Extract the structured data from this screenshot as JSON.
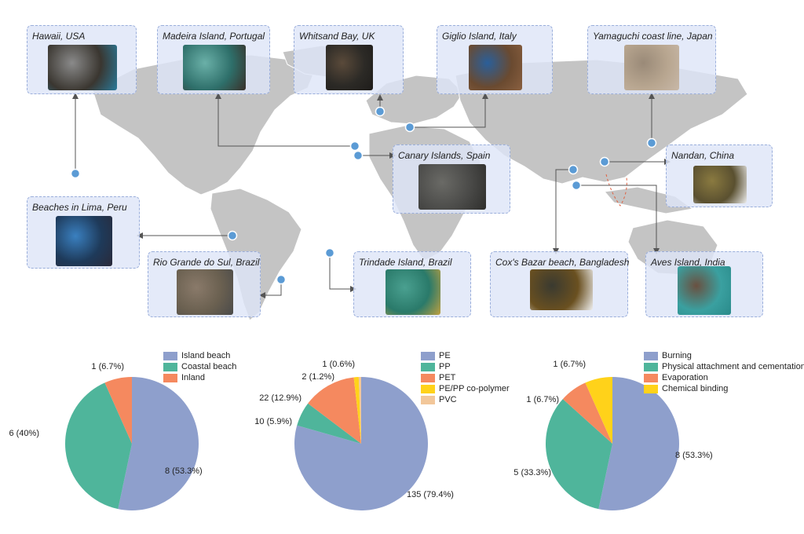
{
  "sites": [
    {
      "id": "hawaii",
      "label": "Hawaii, USA",
      "photo_colors": [
        "#3a3630",
        "#8a8a8a",
        "#2a7a9a"
      ]
    },
    {
      "id": "madeira",
      "label": "Madeira Island, Portugal",
      "photo_colors": [
        "#2e6f6a",
        "#6ab0a8",
        "#3a2f28"
      ]
    },
    {
      "id": "whitsand",
      "label": "Whitsand Bay, UK",
      "photo_colors": [
        "#2c2a26",
        "#5a4a3a",
        "#1e1c1a"
      ]
    },
    {
      "id": "giglio",
      "label": "Giglio Island, Italy",
      "photo_colors": [
        "#6a4a30",
        "#2a5f9a",
        "#8a6040"
      ]
    },
    {
      "id": "yamaguchi",
      "label": "Yamaguchi coast line, Japan",
      "photo_colors": [
        "#b8a690",
        "#9a8a78",
        "#c8b8a8"
      ]
    },
    {
      "id": "canary",
      "label": "Canary Islands, Spain",
      "photo_colors": [
        "#4a4a48",
        "#6a6a66",
        "#2e2e2c"
      ]
    },
    {
      "id": "nandan",
      "label": "Nandan, China",
      "photo_colors": [
        "#5a5030",
        "#8a7a40",
        "#eeeeee"
      ]
    },
    {
      "id": "lima",
      "label": "Beaches in Lima, Peru",
      "photo_colors": [
        "#1e3a5a",
        "#3a80c0",
        "#2a2a3a"
      ]
    },
    {
      "id": "riogrande",
      "label": "Rio Grande do Sul, Brazil",
      "photo_colors": [
        "#6a6050",
        "#8a7a6a",
        "#4a4a4a"
      ]
    },
    {
      "id": "trindade",
      "label": "Trindade Island, Brazil",
      "photo_colors": [
        "#2a7a6a",
        "#4aa090",
        "#c0a040"
      ]
    },
    {
      "id": "coxsbazar",
      "label": "Cox's Bazar beach, Bangladesh",
      "photo_colors": [
        "#6a5020",
        "#3a3a30",
        "#f0f0f0"
      ]
    },
    {
      "id": "aves",
      "label": "Aves Island, India",
      "photo_colors": [
        "#3aa0a0",
        "#6a5040",
        "#2a8a8a"
      ]
    }
  ],
  "chart_data": [
    {
      "type": "pie",
      "categories": [
        "Island beach",
        "Coastal beach",
        "Inland"
      ],
      "values": [
        8,
        6,
        1
      ],
      "data_labels": [
        "8 (53.3%)",
        "6 (40%)",
        "1 (6.7%)"
      ],
      "colors": [
        "#8e9fcc",
        "#4fb59b",
        "#f5895f"
      ],
      "legend": "top-right",
      "start_angle_deg": 0,
      "direction": "clockwise"
    },
    {
      "type": "pie",
      "categories": [
        "PE",
        "PP",
        "PET",
        "PE/PP co-polymer",
        "PVC"
      ],
      "values": [
        135,
        10,
        22,
        2,
        1
      ],
      "data_labels": [
        "135 (79.4%)",
        "10 (5.9%)",
        "22 (12.9%)",
        "2 (1.2%)",
        "1 (0.6%)"
      ],
      "colors": [
        "#8e9fcc",
        "#4fb59b",
        "#f5895f",
        "#ffd21a",
        "#f2c79a"
      ],
      "legend": "top-right",
      "start_angle_deg": 0,
      "direction": "clockwise"
    },
    {
      "type": "pie",
      "categories": [
        "Burning",
        "Physical attachment and cementation",
        "Evaporation",
        "Chemical binding"
      ],
      "values": [
        8,
        5,
        1,
        1
      ],
      "data_labels": [
        "8 (53.3%)",
        "5 (33.3%)",
        "1 (6.7%)",
        "1 (6.7%)"
      ],
      "colors": [
        "#8e9fcc",
        "#4fb59b",
        "#f5895f",
        "#ffd21a"
      ],
      "legend": "top-right",
      "start_angle_deg": 0,
      "direction": "clockwise"
    }
  ]
}
